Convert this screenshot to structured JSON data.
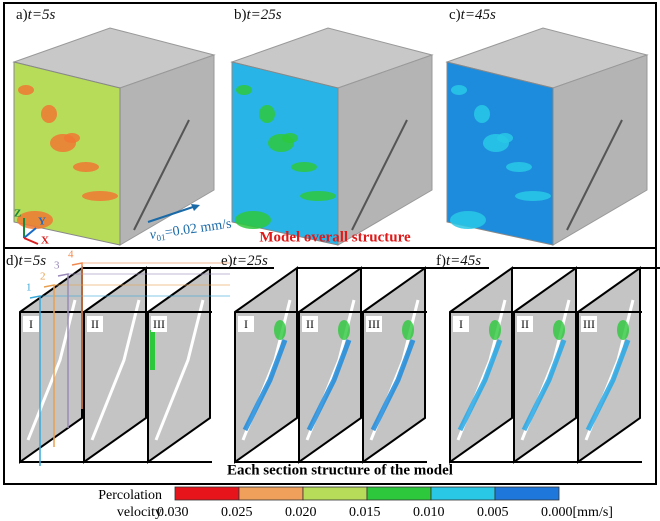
{
  "top_panels": [
    {
      "label": "a)",
      "time": "t=5s"
    },
    {
      "label": "b)",
      "time": "t=25s"
    },
    {
      "label": "c)",
      "time": "t=45s"
    }
  ],
  "axes": {
    "z": "Z",
    "y": "Y",
    "x": "X"
  },
  "inflow": {
    "symbol": "v",
    "subscript": "01",
    "value": "=0.02 mm/s"
  },
  "top_caption": "Model overall structure",
  "bottom_panels": [
    {
      "label": "d)",
      "time": "t=5s",
      "sections": [
        "I",
        "II",
        "III"
      ]
    },
    {
      "label": "e)",
      "time": "t=25s",
      "sections": [
        "I",
        "II",
        "III"
      ]
    },
    {
      "label": "f)",
      "time": "t=45s",
      "sections": [
        "I",
        "II",
        "III"
      ]
    }
  ],
  "section_markers": [
    "1",
    "2",
    "3",
    "4"
  ],
  "bottom_caption": "Each section structure of the model",
  "colorbar": {
    "title_lines": [
      "Percolation",
      "velocity"
    ],
    "tick_labels": [
      "0.030",
      "0.025",
      "0.020",
      "0.015",
      "0.010",
      "0.005",
      "0.000[mm/s]"
    ],
    "colors": [
      "#e8141c",
      "#f0a05a",
      "#b6dc5a",
      "#2dc83c",
      "#28c8e6",
      "#1e78dc"
    ]
  }
}
